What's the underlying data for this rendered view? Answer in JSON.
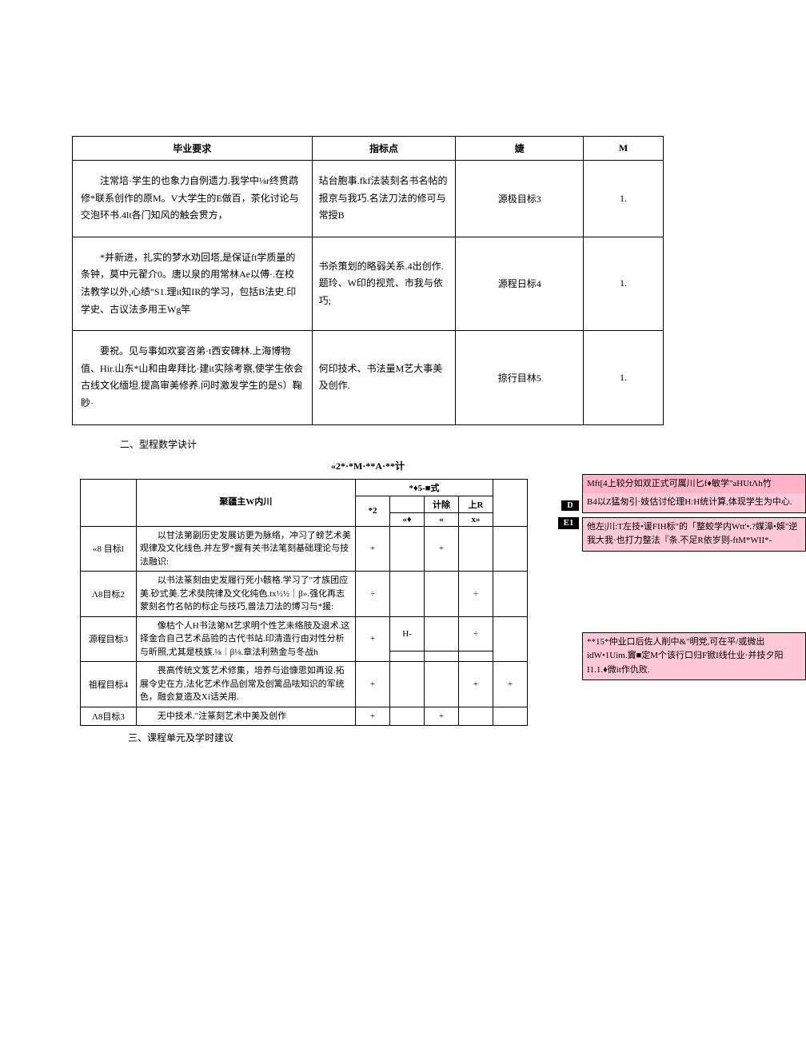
{
  "table1": {
    "headers": [
      "毕业要求",
      "指标点",
      "婕",
      "M"
    ],
    "rows": [
      {
        "c1": "　　注常培·学生的也象力自例遗力.我学中⅛r终贯鹉修*联系创作的原M。V大学生的E做百，茶化讨论与交泡环书.4lt各门知风的触会贯方，",
        "c2": "玷台胞事.fkf法装刻名书名帖的报京与我巧.名法刀法的修可与常授B",
        "c3": "源极目标3",
        "c4": "1."
      },
      {
        "c1": "　　*并新进，扎实的梦水劝回塔,是保证ft学质量的条钟，莫中元翟介0。唐以泉的用常林Ae以傅·.在校法教学以外,心绩\"S1.理it知IR的学习，包括B法史.印学史、古议法多用王Wg竿",
        "c2": "书杀策划的略弱关系.4出创作.题玲、W印的视荒、市我与依巧;",
        "c3": "源程日标4",
        "c4": "1."
      },
      {
        "c1": "　　要祝。见与事如欢宴咨弟·t西安碑林.上海博物值、Hir.山东*山和由卑拜比·建it实除考察,使学生依会古线文化缅坦.提高审美修养.问时激发学生的是S）鞠眇·",
        "c2": "何印技术、书法量M艺大事美及创作.",
        "c3": "掠行目林5",
        "c4": "1."
      }
    ]
  },
  "section2_title": "二、型程数学诀计",
  "table2_title": "«2*·*M·**A·**计",
  "table2": {
    "header_row1": [
      "聚疆主W内川",
      "*♦5-■式"
    ],
    "header_row2": [
      "*2",
      "计除",
      "上R"
    ],
    "header_row3": [
      "«♦",
      "",
      "«",
      "x»"
    ],
    "rows": [
      {
        "id": "«8 目标l",
        "main": "　　以甘法第副历史发展访更为脉络，冲习了螃艺术美观律及文化线色.并左罗*握有关书法笔刻基础理论与技法融识:",
        "v": [
          "+",
          "",
          "+",
          "",
          "",
          ""
        ]
      },
      {
        "id": "Λ8目标2",
        "main": "　　以书法篆刻由史发履行死小骸格.学习了\"才族团应美.砂式美.艺术奘院律及文化纯色.tx½½｜β».强化再志蒙刻名竹名帖的标企与技巧,兽法刀法的博习与*援:",
        "v": [
          "÷",
          "",
          "",
          "÷",
          "",
          ""
        ]
      },
      {
        "id": "源程目标3",
        "main": "　　像枯个人H书法第M艺求明个性艺未络肢及退术.这择金合自己艺术品验的古代书站.印清造行由对性分析与昕照,尤其是枝族.⅛｜β⅛.章法利熟金与冬战h",
        "v": [
          "+",
          "H-",
          "",
          "÷",
          "",
          ""
        ]
      },
      {
        "id": "祖程目标4",
        "main": "　　畏高传统文笈艺术修集，培养与迨慷思如再设.拓展令史在方,法化艺术作品创常及创篱品呿知识的军统色，融会复造及Xi话关用.",
        "v": [
          "+",
          "",
          "",
          "+",
          "+",
          ""
        ]
      },
      {
        "id": "Λ8目标3",
        "main": "　　无中技术.\"注篆刻艺术中美及创作",
        "v": [
          "+",
          "",
          "+",
          "",
          "",
          ""
        ]
      }
    ]
  },
  "callout1": {
    "head": "Mft[4上较分如双正式可厲川匕f♦敏学\"aHUtΛh竹",
    "body": "B4以Z猛匆引·妓估讨伦理H:H统计算,体现学生为中心."
  },
  "callout2": "他左|川:T左技•谖FIH标\"的「整蛟学内Wtt'•.?媒漳•娛\"逆我大我·也打力整法『条.不足R依岁则-ftM*WII*-",
  "callout3": "**15*仲业口后佐人削中&\"明党,可在平/或微出idW•1Uim.竇■定M个该行口归F锨I线仕业·并技夕阳I1.1.♦微it作仇败.",
  "marker_d": "D",
  "marker_e": "E1",
  "footer": "三、课程单元及学时建议"
}
